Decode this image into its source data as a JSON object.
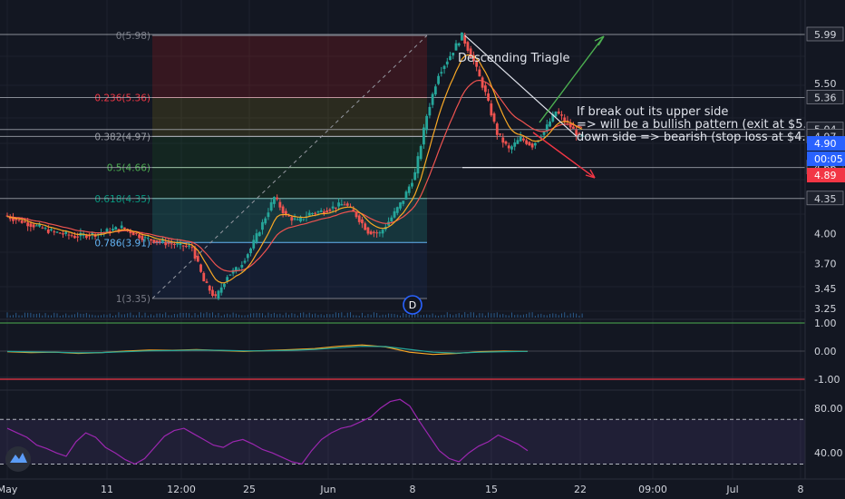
{
  "chart_data": [
    {
      "type": "line",
      "panel": "price",
      "title": "",
      "xlabel": "",
      "ylabel": "",
      "ylim": [
        3.18,
        6.08
      ],
      "y_ticks": [
        "5.99",
        "5.50",
        "5.36",
        "5.04",
        "4.97",
        "4.66",
        "4.35",
        "4.00",
        "3.70",
        "3.45",
        "3.25"
      ],
      "x_ticks": [
        "May",
        "11",
        "12:00",
        "25",
        "Jun",
        "8",
        "15",
        "22",
        "09:00",
        "Jul",
        "8"
      ],
      "price_path": [
        [
          "May 1",
          4.18
        ],
        [
          "May 3",
          4.1
        ],
        [
          "May 5",
          4.02
        ],
        [
          "May 7",
          3.97
        ],
        [
          "May 9",
          4.0
        ],
        [
          "May 11",
          4.06
        ],
        [
          "May 13",
          3.95
        ],
        [
          "May 15",
          3.9
        ],
        [
          "May 17",
          3.86
        ],
        [
          "May 18",
          3.52
        ],
        [
          "May 19",
          3.35
        ],
        [
          "May 20",
          3.58
        ],
        [
          "May 21",
          3.66
        ],
        [
          "May 22",
          3.85
        ],
        [
          "May 23",
          4.1
        ],
        [
          "May 24",
          4.36
        ],
        [
          "May 25",
          4.18
        ],
        [
          "May 26",
          4.12
        ],
        [
          "May 27",
          4.2
        ],
        [
          "May 28",
          4.22
        ],
        [
          "May 29",
          4.26
        ],
        [
          "May 30",
          4.3
        ],
        [
          "May 31",
          4.18
        ],
        [
          "Jun 1",
          4.02
        ],
        [
          "Jun 2",
          4.0
        ],
        [
          "Jun 3",
          4.16
        ],
        [
          "Jun 4",
          4.34
        ],
        [
          "Jun 5",
          4.6
        ],
        [
          "Jun 6",
          5.18
        ],
        [
          "Jun 7",
          5.6
        ],
        [
          "Jun 8",
          5.78
        ],
        [
          "Jun 9",
          5.98
        ],
        [
          "Jun 10",
          5.72
        ],
        [
          "Jun 11",
          5.4
        ],
        [
          "Jun 12",
          5.0
        ],
        [
          "Jun 13",
          4.84
        ],
        [
          "Jun 14",
          4.95
        ],
        [
          "Jun 15",
          4.88
        ],
        [
          "Jun 16",
          5.02
        ],
        [
          "Jun 17",
          5.22
        ],
        [
          "Jun 18",
          5.1
        ],
        [
          "Jun 19",
          4.97
        ]
      ],
      "series": [
        {
          "values_ref": "price_path"
        }
      ],
      "fibonacci": [
        {
          "label": "0(5.98)",
          "value": 5.98,
          "color": "#787b86"
        },
        {
          "label": "0.236(5.36)",
          "value": 5.36,
          "color": "#f23645"
        },
        {
          "label": "0.382(4.97)",
          "value": 4.97,
          "color": "#9598a1"
        },
        {
          "label": "0.5(4.66)",
          "value": 4.66,
          "color": "#4caf50"
        },
        {
          "label": "0.618(4.35)",
          "value": 4.35,
          "color": "#089981"
        },
        {
          "label": "0.786(3.91)",
          "value": 3.91,
          "color": "#64b5f6"
        },
        {
          "label": "1(3.35)",
          "value": 3.35,
          "color": "#787b86"
        }
      ],
      "fib_zone_colors": [
        "#b71c1c",
        "#827717",
        "#1b5e20",
        "#1b5e20",
        "#26a69a",
        "#1e3a6e"
      ],
      "price_labels": [
        {
          "text": "4.90",
          "color": "#2962ff"
        },
        {
          "text": "00:05",
          "color": "#2962ff"
        },
        {
          "text": "4.89",
          "color": "#f23645"
        }
      ],
      "annotations": {
        "pattern": "Descending Triagle",
        "line1": "If break out its upper side",
        "line2": "=> will be a bullish pattern (exit at $5.",
        "line3": "down side => bearish (stop loss at $4.",
        "event_marker": "D"
      },
      "colors": {
        "up": "#26a69a",
        "down": "#ef5350",
        "ema_fast": "#f9a825",
        "ema_slow": "#ef5350",
        "bull_arrow": "#4caf50",
        "bear_arrow": "#f23645"
      }
    },
    {
      "type": "line",
      "panel": "macd",
      "ylim": [
        -1.0,
        1.0
      ],
      "y_ticks": [
        "1.00",
        "0.00",
        "-1.00"
      ],
      "series": [
        {
          "values": [
            -0.02,
            -0.05,
            -0.04,
            -0.08,
            -0.05,
            0.0,
            0.04,
            0.03,
            0.05,
            0.02,
            -0.01,
            0.02,
            0.05,
            0.09,
            0.17,
            0.22,
            0.15,
            -0.04,
            -0.12,
            -0.08,
            -0.02,
            0.0,
            -0.01
          ]
        },
        {
          "values": [
            -0.01,
            -0.03,
            -0.04,
            -0.06,
            -0.05,
            -0.02,
            0.01,
            0.02,
            0.04,
            0.03,
            0.01,
            0.01,
            0.03,
            0.06,
            0.12,
            0.17,
            0.16,
            0.06,
            -0.04,
            -0.07,
            -0.04,
            -0.02,
            -0.01
          ]
        }
      ]
    },
    {
      "type": "line",
      "panel": "rsi",
      "ylim": [
        20,
        100
      ],
      "y_ticks": [
        "80.00",
        "40.00"
      ],
      "series": [
        {
          "values": [
            62,
            58,
            54,
            47,
            44,
            40,
            37,
            50,
            58,
            54,
            45,
            40,
            34,
            30,
            35,
            45,
            55,
            60,
            62,
            57,
            52,
            47,
            45,
            50,
            52,
            48,
            43,
            40,
            36,
            32,
            30,
            42,
            52,
            58,
            62,
            64,
            68,
            72,
            80,
            86,
            88,
            82,
            68,
            55,
            42,
            35,
            32,
            40,
            46,
            50,
            56,
            52,
            48,
            42
          ]
        }
      ]
    }
  ]
}
